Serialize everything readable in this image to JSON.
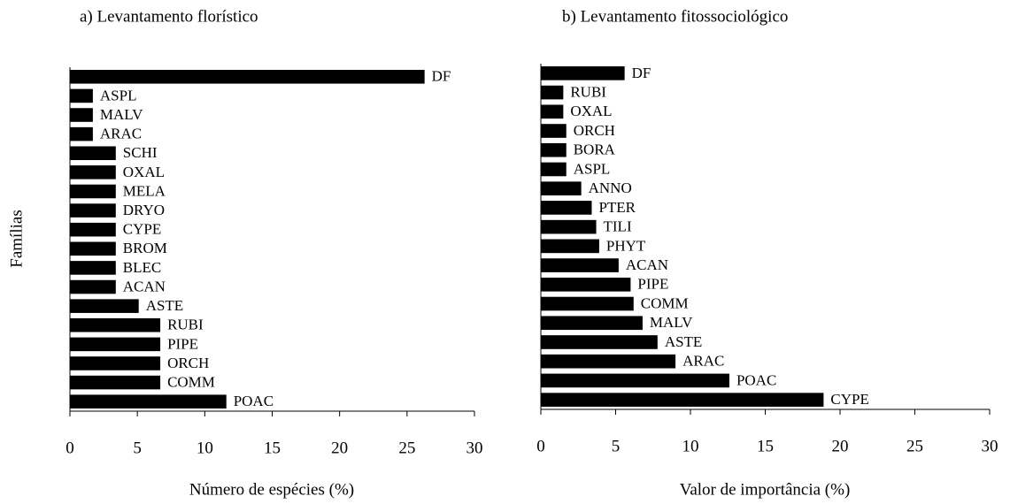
{
  "chart_data": [
    {
      "type": "bar",
      "orientation": "horizontal",
      "title": "a) Levantamento florístico",
      "xlabel": "Número de espécies (%)",
      "ylabel": "Famílias",
      "categories": [
        "DF",
        "ASPL",
        "MALV",
        "ARAC",
        "SCHI",
        "OXAL",
        "MELA",
        "DRYO",
        "CYPE",
        "BROM",
        "BLEC",
        "ACAN",
        "ASTE",
        "RUBI",
        "PIPE",
        "ORCH",
        "COMM",
        "POAC"
      ],
      "values": [
        26.3,
        1.7,
        1.7,
        1.7,
        3.4,
        3.4,
        3.4,
        3.4,
        3.4,
        3.4,
        3.4,
        3.4,
        5.1,
        6.7,
        6.7,
        6.7,
        6.7,
        11.6
      ],
      "color": "#000000",
      "xlim": [
        0,
        30
      ],
      "xticks": [
        0,
        5,
        10,
        15,
        20,
        25,
        30
      ]
    },
    {
      "type": "bar",
      "orientation": "horizontal",
      "title": "b) Levantamento fitossociológico",
      "xlabel": "Valor de importância (%)",
      "categories": [
        "DF",
        "RUBI",
        "OXAL",
        "ORCH",
        "BORA",
        "ASPL",
        "ANNO",
        "PTER",
        "TILI",
        "PHYT",
        "ACAN",
        "PIPE",
        "COMM",
        "MALV",
        "ASTE",
        "ARAC",
        "POAC",
        "CYPE"
      ],
      "values": [
        5.6,
        1.5,
        1.5,
        1.7,
        1.7,
        1.7,
        2.7,
        3.4,
        3.7,
        3.9,
        5.2,
        6.0,
        6.2,
        6.8,
        7.8,
        9.0,
        12.6,
        18.9
      ],
      "color": "#000000",
      "xlim": [
        0,
        30
      ],
      "xticks": [
        0,
        5,
        10,
        15,
        20,
        25,
        30
      ]
    }
  ]
}
